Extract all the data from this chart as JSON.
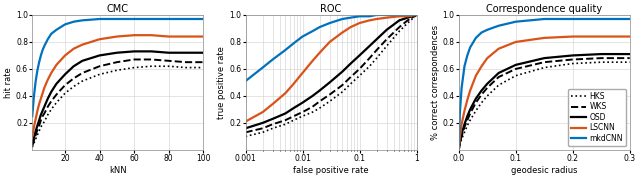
{
  "fig_width": 6.4,
  "fig_height": 1.79,
  "dpi": 100,
  "background_color": "#ffffff",
  "colors": {
    "HKS": "#000000",
    "WKS": "#000000",
    "OSD": "#000000",
    "LSCNN": "#d95319",
    "mkdCNN": "#0072bd"
  },
  "linestyles": {
    "HKS": "dotted",
    "WKS": "dashed",
    "OSD": "solid",
    "LSCNN": "solid",
    "mkdCNN": "solid"
  },
  "linewidths": {
    "HKS": 1.2,
    "WKS": 1.4,
    "OSD": 1.6,
    "LSCNN": 1.6,
    "mkdCNN": 1.6
  },
  "cmc": {
    "title": "CMC",
    "xlabel": "kNN",
    "ylabel": "hit rate",
    "xlim": [
      1,
      100
    ],
    "ylim": [
      0,
      1.0
    ],
    "xticks": [
      20,
      40,
      60,
      80,
      100
    ],
    "yticks": [
      0.2,
      0.4,
      0.6,
      0.8,
      1.0
    ],
    "HKS": {
      "x": [
        1,
        2,
        3,
        4,
        5,
        6,
        7,
        8,
        10,
        12,
        15,
        20,
        25,
        30,
        40,
        50,
        60,
        70,
        80,
        90,
        100
      ],
      "y": [
        0.02,
        0.05,
        0.08,
        0.11,
        0.14,
        0.17,
        0.19,
        0.21,
        0.26,
        0.3,
        0.35,
        0.42,
        0.47,
        0.51,
        0.56,
        0.59,
        0.61,
        0.62,
        0.62,
        0.61,
        0.61
      ]
    },
    "WKS": {
      "x": [
        1,
        2,
        3,
        4,
        5,
        6,
        7,
        8,
        10,
        12,
        15,
        20,
        25,
        30,
        40,
        50,
        60,
        70,
        80,
        90,
        100
      ],
      "y": [
        0.03,
        0.07,
        0.11,
        0.15,
        0.18,
        0.22,
        0.25,
        0.27,
        0.32,
        0.36,
        0.41,
        0.48,
        0.53,
        0.57,
        0.62,
        0.65,
        0.67,
        0.67,
        0.66,
        0.65,
        0.65
      ]
    },
    "OSD": {
      "x": [
        1,
        2,
        3,
        4,
        5,
        6,
        7,
        8,
        10,
        12,
        15,
        20,
        25,
        30,
        40,
        50,
        60,
        70,
        80,
        90,
        100
      ],
      "y": [
        0.04,
        0.09,
        0.14,
        0.18,
        0.22,
        0.26,
        0.29,
        0.32,
        0.38,
        0.43,
        0.49,
        0.56,
        0.62,
        0.66,
        0.7,
        0.72,
        0.73,
        0.73,
        0.72,
        0.72,
        0.72
      ]
    },
    "LSCNN": {
      "x": [
        1,
        2,
        3,
        4,
        5,
        6,
        7,
        8,
        10,
        12,
        15,
        20,
        25,
        30,
        40,
        50,
        60,
        70,
        80,
        90,
        100
      ],
      "y": [
        0.1,
        0.17,
        0.23,
        0.29,
        0.34,
        0.38,
        0.42,
        0.46,
        0.52,
        0.57,
        0.63,
        0.7,
        0.75,
        0.78,
        0.82,
        0.84,
        0.85,
        0.85,
        0.84,
        0.84,
        0.84
      ]
    },
    "mkdCNN": {
      "x": [
        1,
        2,
        3,
        4,
        5,
        6,
        7,
        8,
        10,
        12,
        15,
        20,
        25,
        30,
        40,
        50,
        60,
        70,
        80,
        90,
        100
      ],
      "y": [
        0.25,
        0.4,
        0.51,
        0.59,
        0.65,
        0.7,
        0.74,
        0.77,
        0.82,
        0.86,
        0.89,
        0.93,
        0.95,
        0.96,
        0.97,
        0.97,
        0.97,
        0.97,
        0.97,
        0.97,
        0.97
      ]
    }
  },
  "roc": {
    "title": "ROC",
    "xlabel": "false positive rate",
    "ylabel": "true positive rate",
    "xlim": [
      0.001,
      1.0
    ],
    "ylim": [
      0,
      1.0
    ],
    "xticks_log": [
      0.001,
      0.01,
      0.1,
      1
    ],
    "xtick_labels": [
      "0.001",
      "0.01",
      "0.1",
      "1"
    ],
    "yticks": [
      0.2,
      0.4,
      0.6,
      0.8,
      1.0
    ],
    "HKS": {
      "x": [
        0.001,
        0.002,
        0.003,
        0.005,
        0.007,
        0.01,
        0.015,
        0.02,
        0.03,
        0.05,
        0.07,
        0.1,
        0.15,
        0.2,
        0.3,
        0.5,
        0.7,
        1.0
      ],
      "y": [
        0.1,
        0.13,
        0.16,
        0.19,
        0.22,
        0.25,
        0.28,
        0.31,
        0.36,
        0.43,
        0.49,
        0.55,
        0.62,
        0.68,
        0.77,
        0.88,
        0.94,
        1.0
      ]
    },
    "WKS": {
      "x": [
        0.001,
        0.002,
        0.003,
        0.005,
        0.007,
        0.01,
        0.015,
        0.02,
        0.03,
        0.05,
        0.07,
        0.1,
        0.15,
        0.2,
        0.3,
        0.5,
        0.7,
        1.0
      ],
      "y": [
        0.13,
        0.16,
        0.19,
        0.22,
        0.25,
        0.28,
        0.32,
        0.36,
        0.41,
        0.48,
        0.54,
        0.6,
        0.68,
        0.74,
        0.82,
        0.91,
        0.96,
        1.0
      ]
    },
    "OSD": {
      "x": [
        0.001,
        0.002,
        0.003,
        0.005,
        0.007,
        0.01,
        0.015,
        0.02,
        0.03,
        0.05,
        0.07,
        0.1,
        0.15,
        0.2,
        0.3,
        0.5,
        0.7,
        1.0
      ],
      "y": [
        0.16,
        0.2,
        0.23,
        0.27,
        0.31,
        0.35,
        0.4,
        0.44,
        0.5,
        0.58,
        0.64,
        0.7,
        0.77,
        0.82,
        0.89,
        0.96,
        0.98,
        1.0
      ]
    },
    "LSCNN": {
      "x": [
        0.001,
        0.002,
        0.003,
        0.005,
        0.007,
        0.01,
        0.015,
        0.02,
        0.03,
        0.05,
        0.07,
        0.1,
        0.15,
        0.2,
        0.3,
        0.5,
        0.7,
        1.0
      ],
      "y": [
        0.21,
        0.28,
        0.34,
        0.42,
        0.49,
        0.57,
        0.66,
        0.72,
        0.8,
        0.87,
        0.91,
        0.94,
        0.96,
        0.97,
        0.98,
        0.99,
        0.99,
        1.0
      ]
    },
    "mkdCNN": {
      "x": [
        0.001,
        0.002,
        0.003,
        0.005,
        0.007,
        0.01,
        0.015,
        0.02,
        0.03,
        0.05,
        0.07,
        0.1,
        0.15,
        0.2,
        0.3,
        0.5,
        0.7,
        1.0
      ],
      "y": [
        0.51,
        0.61,
        0.67,
        0.74,
        0.79,
        0.84,
        0.88,
        0.91,
        0.94,
        0.97,
        0.98,
        0.99,
        0.99,
        1.0,
        1.0,
        1.0,
        1.0,
        1.0
      ]
    }
  },
  "cq": {
    "title": "Correspondence quality",
    "xlabel": "geodesic radius",
    "ylabel": "% correct correspondences",
    "xlim": [
      0,
      0.3
    ],
    "ylim": [
      0,
      1.0
    ],
    "xticks": [
      0.0,
      0.1,
      0.2,
      0.3
    ],
    "yticks": [
      0.2,
      0.4,
      0.6,
      0.8,
      1.0
    ],
    "HKS": {
      "x": [
        0.0,
        0.002,
        0.005,
        0.01,
        0.015,
        0.02,
        0.03,
        0.04,
        0.05,
        0.07,
        0.1,
        0.15,
        0.2,
        0.25,
        0.3
      ],
      "y": [
        0.0,
        0.04,
        0.08,
        0.13,
        0.18,
        0.22,
        0.29,
        0.35,
        0.4,
        0.48,
        0.55,
        0.61,
        0.64,
        0.65,
        0.65
      ]
    },
    "WKS": {
      "x": [
        0.0,
        0.002,
        0.005,
        0.01,
        0.015,
        0.02,
        0.03,
        0.04,
        0.05,
        0.07,
        0.1,
        0.15,
        0.2,
        0.25,
        0.3
      ],
      "y": [
        0.0,
        0.05,
        0.1,
        0.17,
        0.22,
        0.27,
        0.35,
        0.41,
        0.46,
        0.54,
        0.6,
        0.65,
        0.67,
        0.68,
        0.68
      ]
    },
    "OSD": {
      "x": [
        0.0,
        0.002,
        0.005,
        0.01,
        0.015,
        0.02,
        0.03,
        0.04,
        0.05,
        0.07,
        0.1,
        0.15,
        0.2,
        0.25,
        0.3
      ],
      "y": [
        0.0,
        0.06,
        0.12,
        0.19,
        0.25,
        0.3,
        0.38,
        0.44,
        0.49,
        0.57,
        0.63,
        0.68,
        0.7,
        0.71,
        0.71
      ]
    },
    "LSCNN": {
      "x": [
        0.0,
        0.002,
        0.005,
        0.01,
        0.015,
        0.02,
        0.03,
        0.04,
        0.05,
        0.07,
        0.1,
        0.15,
        0.2,
        0.25,
        0.3
      ],
      "y": [
        0.0,
        0.1,
        0.19,
        0.29,
        0.37,
        0.44,
        0.55,
        0.62,
        0.68,
        0.75,
        0.8,
        0.83,
        0.84,
        0.84,
        0.84
      ]
    },
    "mkdCNN": {
      "x": [
        0.0,
        0.002,
        0.005,
        0.01,
        0.015,
        0.02,
        0.03,
        0.04,
        0.05,
        0.07,
        0.1,
        0.15,
        0.2,
        0.25,
        0.3
      ],
      "y": [
        0.0,
        0.28,
        0.46,
        0.62,
        0.7,
        0.76,
        0.83,
        0.87,
        0.89,
        0.92,
        0.95,
        0.97,
        0.97,
        0.97,
        0.97
      ]
    }
  },
  "legend_labels": [
    "HKS",
    "WKS",
    "OSD",
    "LSCNN",
    "mkdCNN"
  ],
  "legend_loc": "lower right",
  "font_size": 5.5,
  "title_font_size": 7,
  "label_font_size": 6,
  "tick_font_size": 5.5,
  "grid_color": "#d0d0d0",
  "grid_linewidth": 0.4
}
